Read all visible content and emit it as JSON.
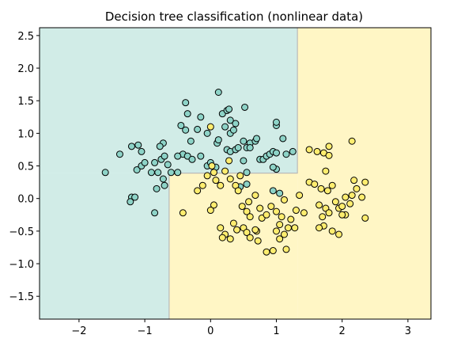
{
  "chart_data": {
    "type": "scatter",
    "title": "Decision tree classification (nonlinear data)",
    "xlabel": "",
    "ylabel": "",
    "xlim": [
      -2.6,
      3.35
    ],
    "ylim": [
      -1.85,
      2.62
    ],
    "x_ticks": [
      -2,
      -1,
      0,
      1,
      2,
      3
    ],
    "y_ticks": [
      -1.5,
      -1.0,
      -0.5,
      0.0,
      0.5,
      1.0,
      1.5,
      2.0,
      2.5
    ],
    "grid": false,
    "legend": "none",
    "colors": {
      "class0_point": "#8dd3c7",
      "class1_point": "#ffed6f",
      "class0_region": "#d1ece7",
      "class1_region": "#fff6c5",
      "point_edge": "#000000",
      "boundary": "#b9b9b9"
    },
    "decision_regions": [
      {
        "class": 0,
        "x": [
          -2.6,
          1.32
        ],
        "y": [
          0.39,
          2.62
        ]
      },
      {
        "class": 0,
        "x": [
          -2.6,
          -0.63
        ],
        "y": [
          -1.85,
          0.39
        ]
      },
      {
        "class": 1,
        "x": [
          1.32,
          3.35
        ],
        "y": [
          -1.85,
          2.62
        ]
      },
      {
        "class": 1,
        "x": [
          -0.63,
          1.32
        ],
        "y": [
          -1.85,
          0.39
        ]
      }
    ],
    "series": [
      {
        "class": 0,
        "points": [
          [
            -1.6,
            0.4
          ],
          [
            -1.38,
            0.68
          ],
          [
            -1.2,
            0.8
          ],
          [
            -1.1,
            0.82
          ],
          [
            -1.05,
            0.72
          ],
          [
            -1.12,
            0.44
          ],
          [
            -1.05,
            0.5
          ],
          [
            -1.0,
            0.55
          ],
          [
            -1.2,
            0.02
          ],
          [
            -1.22,
            -0.05
          ],
          [
            -1.15,
            0.02
          ],
          [
            -0.9,
            0.4
          ],
          [
            -0.85,
            0.55
          ],
          [
            -0.8,
            0.4
          ],
          [
            -0.82,
            0.15
          ],
          [
            -0.72,
            0.3
          ],
          [
            -0.7,
            0.2
          ],
          [
            -0.6,
            0.4
          ],
          [
            -0.75,
            0.6
          ],
          [
            -0.7,
            0.65
          ],
          [
            -0.65,
            0.52
          ],
          [
            -0.72,
            0.85
          ],
          [
            -0.77,
            0.8
          ],
          [
            -0.85,
            -0.22
          ],
          [
            -0.5,
            0.4
          ],
          [
            -0.42,
            0.68
          ],
          [
            -0.35,
            0.65
          ],
          [
            -0.5,
            0.65
          ],
          [
            -0.3,
            0.88
          ],
          [
            -0.38,
            1.05
          ],
          [
            -0.45,
            1.12
          ],
          [
            -0.35,
            1.3
          ],
          [
            -0.38,
            1.47
          ],
          [
            -0.2,
            1.06
          ],
          [
            -0.15,
            1.25
          ],
          [
            -0.05,
            1.0
          ],
          [
            -0.15,
            0.65
          ],
          [
            -0.28,
            0.6
          ],
          [
            -0.05,
            0.5
          ],
          [
            0.0,
            0.55
          ],
          [
            0.08,
            0.48
          ],
          [
            0.1,
            0.85
          ],
          [
            0.12,
            0.9
          ],
          [
            0.12,
            1.63
          ],
          [
            0.18,
            1.3
          ],
          [
            0.25,
            1.35
          ],
          [
            0.28,
            1.37
          ],
          [
            0.3,
            1.2
          ],
          [
            0.38,
            1.15
          ],
          [
            0.3,
            1.0
          ],
          [
            0.22,
            1.1
          ],
          [
            0.25,
            0.75
          ],
          [
            0.3,
            0.72
          ],
          [
            0.38,
            0.75
          ],
          [
            0.42,
            0.78
          ],
          [
            0.5,
            0.88
          ],
          [
            0.6,
            0.85
          ],
          [
            0.55,
            0.78
          ],
          [
            0.5,
            0.58
          ],
          [
            0.55,
            0.4
          ],
          [
            0.68,
            0.88
          ],
          [
            0.7,
            0.92
          ],
          [
            0.75,
            0.6
          ],
          [
            0.8,
            0.6
          ],
          [
            0.85,
            0.65
          ],
          [
            0.9,
            0.68
          ],
          [
            0.95,
            0.72
          ],
          [
            1.0,
            0.7
          ],
          [
            1.0,
            0.45
          ],
          [
            1.0,
            1.12
          ],
          [
            1.0,
            1.17
          ],
          [
            1.1,
            0.92
          ],
          [
            1.15,
            0.68
          ],
          [
            0.52,
            1.4
          ],
          [
            0.95,
            0.48
          ],
          [
            1.25,
            0.72
          ],
          [
            0.35,
            1.05
          ],
          [
            0.6,
            0.78
          ],
          [
            0.45,
            0.18
          ],
          [
            0.55,
            0.22
          ],
          [
            0.95,
            0.12
          ],
          [
            1.05,
            0.08
          ]
        ]
      },
      {
        "class": 1,
        "points": [
          [
            0.0,
            1.1
          ],
          [
            -0.12,
            0.2
          ],
          [
            -0.2,
            0.12
          ],
          [
            -0.42,
            -0.22
          ],
          [
            -0.05,
            0.35
          ],
          [
            0.02,
            0.5
          ],
          [
            0.05,
            0.4
          ],
          [
            0.08,
            0.28
          ],
          [
            0.05,
            -0.1
          ],
          [
            0.0,
            -0.18
          ],
          [
            0.15,
            0.2
          ],
          [
            0.22,
            0.42
          ],
          [
            0.28,
            0.58
          ],
          [
            0.3,
            0.3
          ],
          [
            0.38,
            0.2
          ],
          [
            0.45,
            0.35
          ],
          [
            0.42,
            0.12
          ],
          [
            0.48,
            -0.12
          ],
          [
            0.55,
            -0.2
          ],
          [
            0.58,
            -0.05
          ],
          [
            0.6,
            -0.28
          ],
          [
            0.68,
            0.05
          ],
          [
            0.75,
            -0.15
          ],
          [
            0.78,
            -0.3
          ],
          [
            0.85,
            -0.25
          ],
          [
            0.92,
            -0.12
          ],
          [
            1.0,
            -0.2
          ],
          [
            1.05,
            -0.4
          ],
          [
            1.08,
            -0.28
          ],
          [
            1.12,
            -0.02
          ],
          [
            1.18,
            -0.45
          ],
          [
            1.22,
            -0.32
          ],
          [
            1.28,
            -0.45
          ],
          [
            1.3,
            -0.18
          ],
          [
            1.35,
            0.05
          ],
          [
            1.42,
            -0.22
          ],
          [
            1.5,
            0.25
          ],
          [
            1.58,
            0.22
          ],
          [
            1.65,
            -0.1
          ],
          [
            1.68,
            0.15
          ],
          [
            1.7,
            -0.28
          ],
          [
            1.75,
            -0.15
          ],
          [
            1.78,
            0.12
          ],
          [
            1.8,
            -0.22
          ],
          [
            1.85,
            0.2
          ],
          [
            1.9,
            -0.05
          ],
          [
            1.95,
            -0.15
          ],
          [
            2.0,
            -0.12
          ],
          [
            2.05,
            -0.25
          ],
          [
            2.05,
            0.02
          ],
          [
            2.12,
            -0.08
          ],
          [
            2.15,
            0.05
          ],
          [
            2.18,
            0.28
          ],
          [
            2.22,
            0.15
          ],
          [
            2.3,
            0.02
          ],
          [
            2.35,
            0.25
          ],
          [
            2.35,
            -0.3
          ],
          [
            1.75,
            0.42
          ],
          [
            1.62,
            0.72
          ],
          [
            1.72,
            0.7
          ],
          [
            1.8,
            0.66
          ],
          [
            1.8,
            0.8
          ],
          [
            2.15,
            0.88
          ],
          [
            1.5,
            0.75
          ],
          [
            1.72,
            -0.42
          ],
          [
            1.65,
            -0.45
          ],
          [
            1.85,
            -0.5
          ],
          [
            1.95,
            -0.55
          ],
          [
            2.0,
            -0.25
          ],
          [
            0.15,
            -0.45
          ],
          [
            0.22,
            -0.55
          ],
          [
            0.18,
            -0.6
          ],
          [
            0.3,
            -0.62
          ],
          [
            0.35,
            -0.38
          ],
          [
            0.4,
            -0.48
          ],
          [
            0.5,
            -0.45
          ],
          [
            0.55,
            -0.52
          ],
          [
            0.6,
            -0.6
          ],
          [
            0.7,
            -0.5
          ],
          [
            0.72,
            -0.65
          ],
          [
            0.85,
            -0.82
          ],
          [
            0.95,
            -0.8
          ],
          [
            1.0,
            -0.5
          ],
          [
            1.05,
            -0.62
          ],
          [
            1.12,
            -0.55
          ],
          [
            1.15,
            -0.78
          ],
          [
            0.68,
            -0.48
          ]
        ]
      }
    ]
  }
}
